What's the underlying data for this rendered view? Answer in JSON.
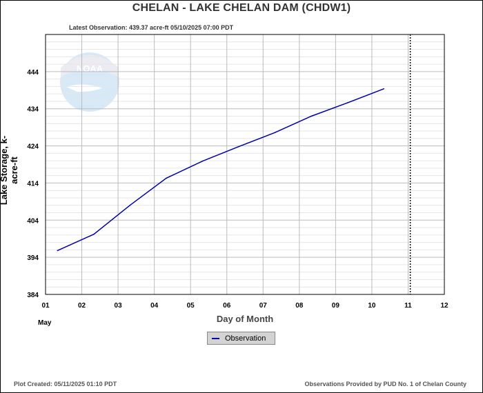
{
  "chart_data": {
    "type": "line",
    "title": "CHELAN - LAKE CHELAN DAM  (CHDW1)",
    "subtitle": "Latest Observation: 439.37 acre-ft 05/10/2025 07:00 PDT",
    "xlabel": "Day of Month",
    "xlabel_month": "May",
    "ylabel": "Lake Storage, k-acre-ft",
    "xlim": [
      1,
      12
    ],
    "ylim": [
      384,
      454
    ],
    "x_ticks": [
      "01",
      "02",
      "03",
      "04",
      "05",
      "06",
      "07",
      "08",
      "09",
      "10",
      "11",
      "12"
    ],
    "y_ticks": [
      384,
      394,
      404,
      414,
      424,
      434,
      444
    ],
    "grid": true,
    "legend_position": "bottom-center",
    "vline_x": 11.06,
    "series": [
      {
        "name": "Observation",
        "color": "#0000aa",
        "x": [
          1.33,
          2.33,
          3.33,
          4.33,
          5.33,
          6.33,
          7.33,
          8.33,
          9.33,
          10.33
        ],
        "y": [
          395.8,
          400.2,
          408.0,
          415.3,
          419.9,
          423.8,
          427.6,
          432.0,
          435.6,
          439.37
        ]
      }
    ]
  },
  "footer": {
    "plot_created": "Plot Created: 05/11/2025 01:10 PDT",
    "provider": "Observations Provided by PUD No. 1 of Chelan County"
  },
  "logo": {
    "text": "NOAA",
    "icon": "noaa-logo"
  }
}
